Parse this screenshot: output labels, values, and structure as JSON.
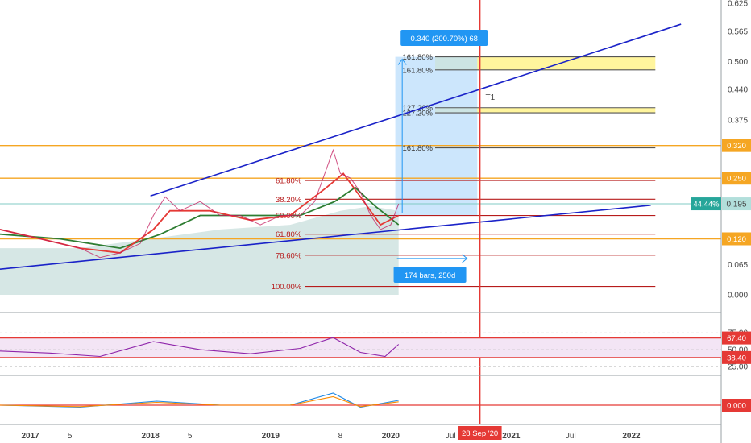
{
  "chart_data": {
    "type": "line",
    "symbol_series": [
      {
        "t": "2016-10-01",
        "v": 0.14
      },
      {
        "t": "2016-12-01",
        "v": 0.13
      },
      {
        "t": "2017-02-01",
        "v": 0.12
      },
      {
        "t": "2017-04-01",
        "v": 0.11
      },
      {
        "t": "2017-06-01",
        "v": 0.1
      },
      {
        "t": "2017-08-01",
        "v": 0.08
      },
      {
        "t": "2017-10-01",
        "v": 0.09
      },
      {
        "t": "2017-12-01",
        "v": 0.11
      },
      {
        "t": "2018-01-10",
        "v": 0.17
      },
      {
        "t": "2018-02-15",
        "v": 0.21
      },
      {
        "t": "2018-04-01",
        "v": 0.18
      },
      {
        "t": "2018-06-01",
        "v": 0.2
      },
      {
        "t": "2018-08-01",
        "v": 0.17
      },
      {
        "t": "2018-10-01",
        "v": 0.17
      },
      {
        "t": "2018-12-01",
        "v": 0.15
      },
      {
        "t": "2019-02-01",
        "v": 0.17
      },
      {
        "t": "2019-04-01",
        "v": 0.17
      },
      {
        "t": "2019-05-15",
        "v": 0.2
      },
      {
        "t": "2019-06-20",
        "v": 0.27
      },
      {
        "t": "2019-07-10",
        "v": 0.31
      },
      {
        "t": "2019-08-01",
        "v": 0.26
      },
      {
        "t": "2019-09-01",
        "v": 0.25
      },
      {
        "t": "2019-10-01",
        "v": 0.22
      },
      {
        "t": "2019-11-01",
        "v": 0.17
      },
      {
        "t": "2019-12-01",
        "v": 0.14
      },
      {
        "t": "2020-01-01",
        "v": 0.15
      },
      {
        "t": "2020-01-25",
        "v": 0.195
      }
    ],
    "ma_fast": [
      {
        "t": "2016-10-01",
        "v": 0.14
      },
      {
        "t": "2017-02-01",
        "v": 0.12
      },
      {
        "t": "2017-06-01",
        "v": 0.1
      },
      {
        "t": "2017-10-01",
        "v": 0.09
      },
      {
        "t": "2018-01-10",
        "v": 0.14
      },
      {
        "t": "2018-03-01",
        "v": 0.18
      },
      {
        "t": "2018-07-01",
        "v": 0.18
      },
      {
        "t": "2018-11-01",
        "v": 0.16
      },
      {
        "t": "2019-03-01",
        "v": 0.17
      },
      {
        "t": "2019-06-20",
        "v": 0.23
      },
      {
        "t": "2019-08-10",
        "v": 0.26
      },
      {
        "t": "2019-10-01",
        "v": 0.21
      },
      {
        "t": "2019-12-01",
        "v": 0.15
      },
      {
        "t": "2020-01-25",
        "v": 0.17
      }
    ],
    "ma_slow": [
      {
        "t": "2016-10-01",
        "v": 0.13
      },
      {
        "t": "2017-04-01",
        "v": 0.12
      },
      {
        "t": "2017-10-01",
        "v": 0.1
      },
      {
        "t": "2018-02-01",
        "v": 0.13
      },
      {
        "t": "2018-06-01",
        "v": 0.17
      },
      {
        "t": "2018-11-01",
        "v": 0.17
      },
      {
        "t": "2019-04-01",
        "v": 0.17
      },
      {
        "t": "2019-07-15",
        "v": 0.2
      },
      {
        "t": "2019-09-15",
        "v": 0.23
      },
      {
        "t": "2019-11-15",
        "v": 0.19
      },
      {
        "t": "2020-01-25",
        "v": 0.15
      }
    ],
    "area_series": [
      {
        "t": "2016-10-01",
        "v": 0.1
      },
      {
        "t": "2017-06-01",
        "v": 0.1
      },
      {
        "t": "2018-01-01",
        "v": 0.12
      },
      {
        "t": "2018-08-01",
        "v": 0.14
      },
      {
        "t": "2019-03-01",
        "v": 0.15
      },
      {
        "t": "2019-08-01",
        "v": 0.18
      },
      {
        "t": "2019-11-01",
        "v": 0.19
      },
      {
        "t": "2020-01-25",
        "v": 0.18
      }
    ],
    "y_axis": {
      "ticks": [
        "0.625",
        "0.565",
        "0.500",
        "0.440",
        "0.375",
        "0.320",
        "0.250",
        "0.195",
        "0.120",
        "0.065",
        "0.000"
      ],
      "ylim": [
        0.0,
        0.625
      ]
    },
    "x_axis": {
      "ticks": [
        {
          "label": "2017",
          "t": "2017-01-01"
        },
        {
          "label": "5",
          "t": "2017-05-01"
        },
        {
          "label": "2018",
          "t": "2018-01-01"
        },
        {
          "label": "5",
          "t": "2018-05-01"
        },
        {
          "label": "2019",
          "t": "2019-01-01"
        },
        {
          "label": "8",
          "t": "2019-08-01"
        },
        {
          "label": "2020",
          "t": "2020-01-01"
        },
        {
          "label": "Jul",
          "t": "2020-07-01"
        },
        {
          "label": "2021",
          "t": "2021-01-01"
        },
        {
          "label": "Jul",
          "t": "2021-07-01"
        },
        {
          "label": "2022",
          "t": "2022-01-01"
        }
      ],
      "xlim": [
        "2016-10-01",
        "2022-10-01"
      ]
    },
    "horizontal_levels": [
      {
        "label": "0.320",
        "value": 0.32,
        "color": "#f5a623"
      },
      {
        "label": "0.250",
        "value": 0.25,
        "color": "#f5a623"
      },
      {
        "label": "0.120",
        "value": 0.12,
        "color": "#f5a623"
      }
    ],
    "price_label": {
      "label": "0.195",
      "value": 0.195,
      "percent": "44.44%"
    },
    "fib_levels": [
      {
        "label": "161.80%",
        "value": 0.51
      },
      {
        "label": "161.80%",
        "value": 0.482
      },
      {
        "label": "127.20%",
        "value": 0.401
      },
      {
        "label": "127.20%",
        "value": 0.39
      },
      {
        "label": "161.80%",
        "value": 0.315
      },
      {
        "label": "61.80%",
        "value": 0.245
      },
      {
        "label": "38.20%",
        "value": 0.205
      },
      {
        "label": "50.00%",
        "value": 0.17
      },
      {
        "label": "61.80%",
        "value": 0.13
      },
      {
        "label": "78.60%",
        "value": 0.085
      },
      {
        "label": "100.00%",
        "value": 0.018
      }
    ],
    "trend_lines": [
      {
        "name": "upper",
        "from": {
          "t": "2018-01-01",
          "v": 0.212
        },
        "to": {
          "t": "2022-06-01",
          "v": 0.58
        }
      },
      {
        "name": "lower",
        "from": {
          "t": "2016-10-01",
          "v": 0.055
        },
        "to": {
          "t": "2022-03-01",
          "v": 0.192
        }
      }
    ],
    "vertical_marker": {
      "t": "2020-09-28",
      "label": "28 Sep '20"
    },
    "annotations": {
      "measure_label": "0.340 (200.70%) 68",
      "bars_label": "174 bars, 250d",
      "trend_label": "T1"
    },
    "rsi": {
      "ticks": [
        "75.00",
        "50.00",
        "25.00"
      ],
      "levels": [
        "67.40",
        "38.40"
      ],
      "series": [
        {
          "t": "2016-10-01",
          "v": 48
        },
        {
          "t": "2017-03-01",
          "v": 45
        },
        {
          "t": "2017-08-01",
          "v": 40
        },
        {
          "t": "2018-01-10",
          "v": 62
        },
        {
          "t": "2018-06-01",
          "v": 50
        },
        {
          "t": "2018-11-01",
          "v": 44
        },
        {
          "t": "2019-04-01",
          "v": 52
        },
        {
          "t": "2019-07-10",
          "v": 68
        },
        {
          "t": "2019-10-01",
          "v": 46
        },
        {
          "t": "2019-12-15",
          "v": 40
        },
        {
          "t": "2020-01-25",
          "v": 58
        }
      ]
    },
    "macd": {
      "level": "0.000",
      "series": [
        {
          "t": "2016-10-01",
          "v": 0.0
        },
        {
          "t": "2017-06-01",
          "v": -0.005
        },
        {
          "t": "2018-01-20",
          "v": 0.01
        },
        {
          "t": "2018-08-01",
          "v": 0.0
        },
        {
          "t": "2019-03-01",
          "v": 0.0
        },
        {
          "t": "2019-07-10",
          "v": 0.03
        },
        {
          "t": "2019-10-01",
          "v": -0.005
        },
        {
          "t": "2020-01-25",
          "v": 0.012
        }
      ]
    }
  }
}
